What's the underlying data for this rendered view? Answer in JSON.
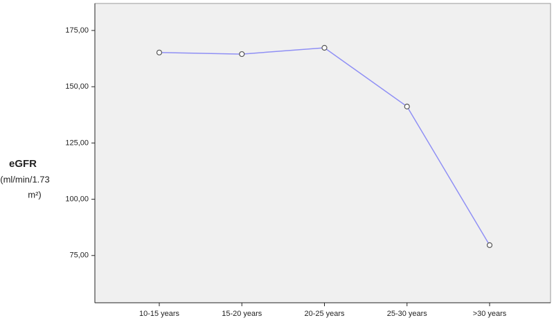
{
  "chart_data": {
    "type": "line",
    "y_label": {
      "title": "eGFR",
      "unit_lines": [
        "(ml/min/1.73",
        "m²)"
      ]
    },
    "categories": [
      "10-15 years",
      "15-20 years",
      "20-25 years",
      "25-30 years",
      ">30 years"
    ],
    "series": [
      {
        "color": "#8f8ff5",
        "values": [
          165.2,
          164.5,
          167.3,
          141.2,
          79.6
        ]
      }
    ],
    "ylim": [
      54,
      187
    ],
    "yticks": [
      {
        "value": 75,
        "label": "75,00"
      },
      {
        "value": 100,
        "label": "100,00"
      },
      {
        "value": 125,
        "label": "125,00"
      },
      {
        "value": 150,
        "label": "150,00"
      },
      {
        "value": 175,
        "label": "175,00"
      }
    ],
    "grid": false
  }
}
